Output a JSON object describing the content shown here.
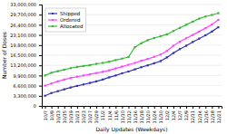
{
  "chart_data": {
    "type": "line",
    "xlabel": "Daily Updates (Weekdays)",
    "ylabel": "Number of Doses",
    "categories": [
      "10/7",
      "10/9",
      "10/13",
      "10/15",
      "10/19",
      "10/21",
      "10/23",
      "10/27",
      "10/29",
      "11/2",
      "11/4",
      "11/6",
      "11/10",
      "11/12",
      "11/16",
      "11/18",
      "11/20",
      "11/24",
      "11/30",
      "12/2",
      "12/4",
      "12/7",
      "12/9",
      "12/11",
      "12/14",
      "12/16",
      "12/18",
      "12/21"
    ],
    "series": [
      {
        "name": "Shipped",
        "color": "#3333bb",
        "values": [
          3300000,
          4200000,
          4800000,
          5400000,
          6000000,
          6500000,
          7000000,
          7500000,
          8000000,
          8600000,
          9300000,
          9900000,
          10600000,
          11200000,
          11900000,
          12600000,
          13200000,
          13900000,
          14600000,
          15800000,
          17200000,
          18500000,
          19600000,
          20800000,
          21900000,
          23000000,
          24200000,
          25600000
        ]
      },
      {
        "name": "Ordered",
        "color": "#ff44ff",
        "values": [
          6600000,
          7300000,
          8000000,
          8600000,
          9100000,
          9500000,
          9900000,
          10300000,
          10700000,
          11100000,
          11600000,
          12200000,
          12800000,
          13400000,
          14000000,
          14700000,
          15300000,
          16000000,
          16700000,
          17900000,
          19600000,
          20900000,
          22000000,
          23100000,
          24200000,
          25300000,
          26500000,
          28000000
        ]
      },
      {
        "name": "Allocated",
        "color": "#33bb33",
        "values": [
          9900000,
          10800000,
          11300000,
          11800000,
          12300000,
          12700000,
          13000000,
          13300000,
          13700000,
          14000000,
          14400000,
          14900000,
          15400000,
          15900000,
          19100000,
          20400000,
          21400000,
          22100000,
          22700000,
          23300000,
          24400000,
          25400000,
          26400000,
          27400000,
          28400000,
          29100000,
          29600000,
          30200000
        ]
      }
    ],
    "ylim": [
      0,
      33000000
    ],
    "yticks": [
      0,
      {
        "value": 3300000,
        "label": "3,300,000"
      },
      {
        "value": 6600000,
        "label": "6,600,000"
      },
      {
        "value": 9900000,
        "label": "9,900,000"
      },
      {
        "value": 13200000,
        "label": "13,200,000"
      },
      {
        "value": 16500000,
        "label": "16,500,000"
      },
      {
        "value": 19800000,
        "label": "19,800,000"
      },
      {
        "value": 23100000,
        "label": "23,100,000"
      },
      {
        "value": 26400000,
        "label": "26,400,000"
      },
      {
        "value": 29700000,
        "label": "29,700,000"
      },
      {
        "value": 33000000,
        "label": "33,000,000"
      }
    ],
    "grid": true,
    "legend": "upper left",
    "marker": "square"
  }
}
